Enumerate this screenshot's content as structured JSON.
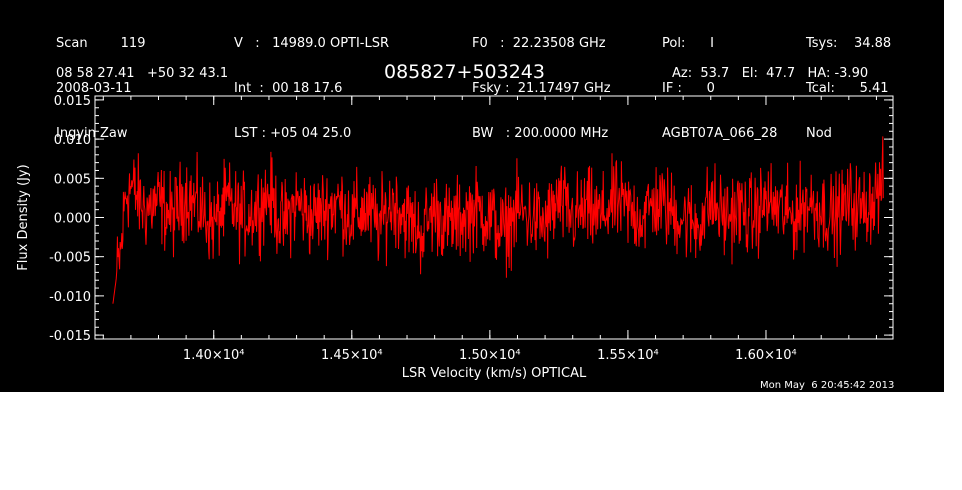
{
  "header": {
    "col1": [
      "Scan        119",
      "2008-03-11",
      "Ingyin Zaw"
    ],
    "col2": [
      "V   :   14989.0 OPTI-LSR",
      "Int  :  00 18 17.6",
      "LST : +05 04 25.0"
    ],
    "col3": [
      "F0   :  22.23508 GHz",
      "Fsky :  21.17497 GHz",
      "BW   : 200.0000 MHz"
    ],
    "col4": [
      "Pol:      I",
      "IF :      0",
      "AGBT07A_066_28"
    ],
    "col5": [
      "Tsys:    34.88",
      "Tcal:      5.41",
      "Nod"
    ],
    "coords": "08 58 27.41   +50 32 43.1",
    "source": "085827+503243",
    "pointing": "Az:  53.7   El:  47.7   HA: -3.90",
    "timestamp": "Mon May  6 20:45:42 2013"
  },
  "chart_data": {
    "type": "line",
    "xlabel": "LSR Velocity (km/s) OPTICAL",
    "ylabel": "Flux Density (Jy)",
    "xlim": [
      13570,
      16460
    ],
    "ylim": [
      -0.0155,
      0.0155
    ],
    "x_ticks": [
      14000,
      14500,
      15000,
      15500,
      16000
    ],
    "x_tick_labels": [
      "1.40×10⁴",
      "1.45×10⁴",
      "1.50×10⁴",
      "1.55×10⁴",
      "1.60×10⁴"
    ],
    "y_ticks": [
      0.015,
      0.01,
      0.005,
      0.0,
      -0.005,
      -0.01,
      -0.015
    ],
    "y_tick_labels": [
      "0.015",
      "0.010",
      "0.005",
      "0.000",
      "-0.005",
      "-0.010",
      "-0.015"
    ],
    "series": [
      {
        "color": "#ff0000",
        "x": [
          13635,
          13650,
          13665,
          13680,
          13700,
          13750,
          13800,
          13850,
          13900,
          13950,
          14000,
          14050,
          14100,
          14150,
          14200,
          14250,
          14300,
          14350,
          14400,
          14450,
          14500,
          14550,
          14600,
          14650,
          14700,
          14750,
          14800,
          14850,
          14900,
          14950,
          15000,
          15050,
          15100,
          15150,
          15200,
          15250,
          15300,
          15350,
          15400,
          15450,
          15500,
          15550,
          15600,
          15650,
          15700,
          15750,
          15800,
          15850,
          15900,
          15950,
          16000,
          16050,
          16100,
          16150,
          16200,
          16250,
          16300,
          16350,
          16400,
          16425
        ],
        "y": [
          -0.011,
          -0.007,
          -0.004,
          0.003,
          0.004,
          0.001,
          0.002,
          0.0,
          0.003,
          0.001,
          -0.001,
          0.002,
          0.0,
          0.001,
          0.003,
          -0.001,
          0.002,
          0.0,
          0.001,
          0.002,
          0.0,
          0.001,
          -0.001,
          0.002,
          0.0,
          -0.002,
          0.001,
          -0.001,
          0.0,
          0.001,
          0.0,
          -0.002,
          0.001,
          0.0,
          -0.001,
          0.002,
          0.0,
          0.001,
          0.0,
          0.002,
          0.001,
          0.0,
          0.002,
          0.001,
          0.0,
          -0.001,
          0.002,
          0.0,
          0.001,
          0.0,
          0.002,
          0.001,
          0.0,
          0.002,
          0.001,
          0.0,
          0.002,
          0.001,
          0.003,
          0.004
        ]
      }
    ],
    "noise_amplitude": 0.0045
  }
}
